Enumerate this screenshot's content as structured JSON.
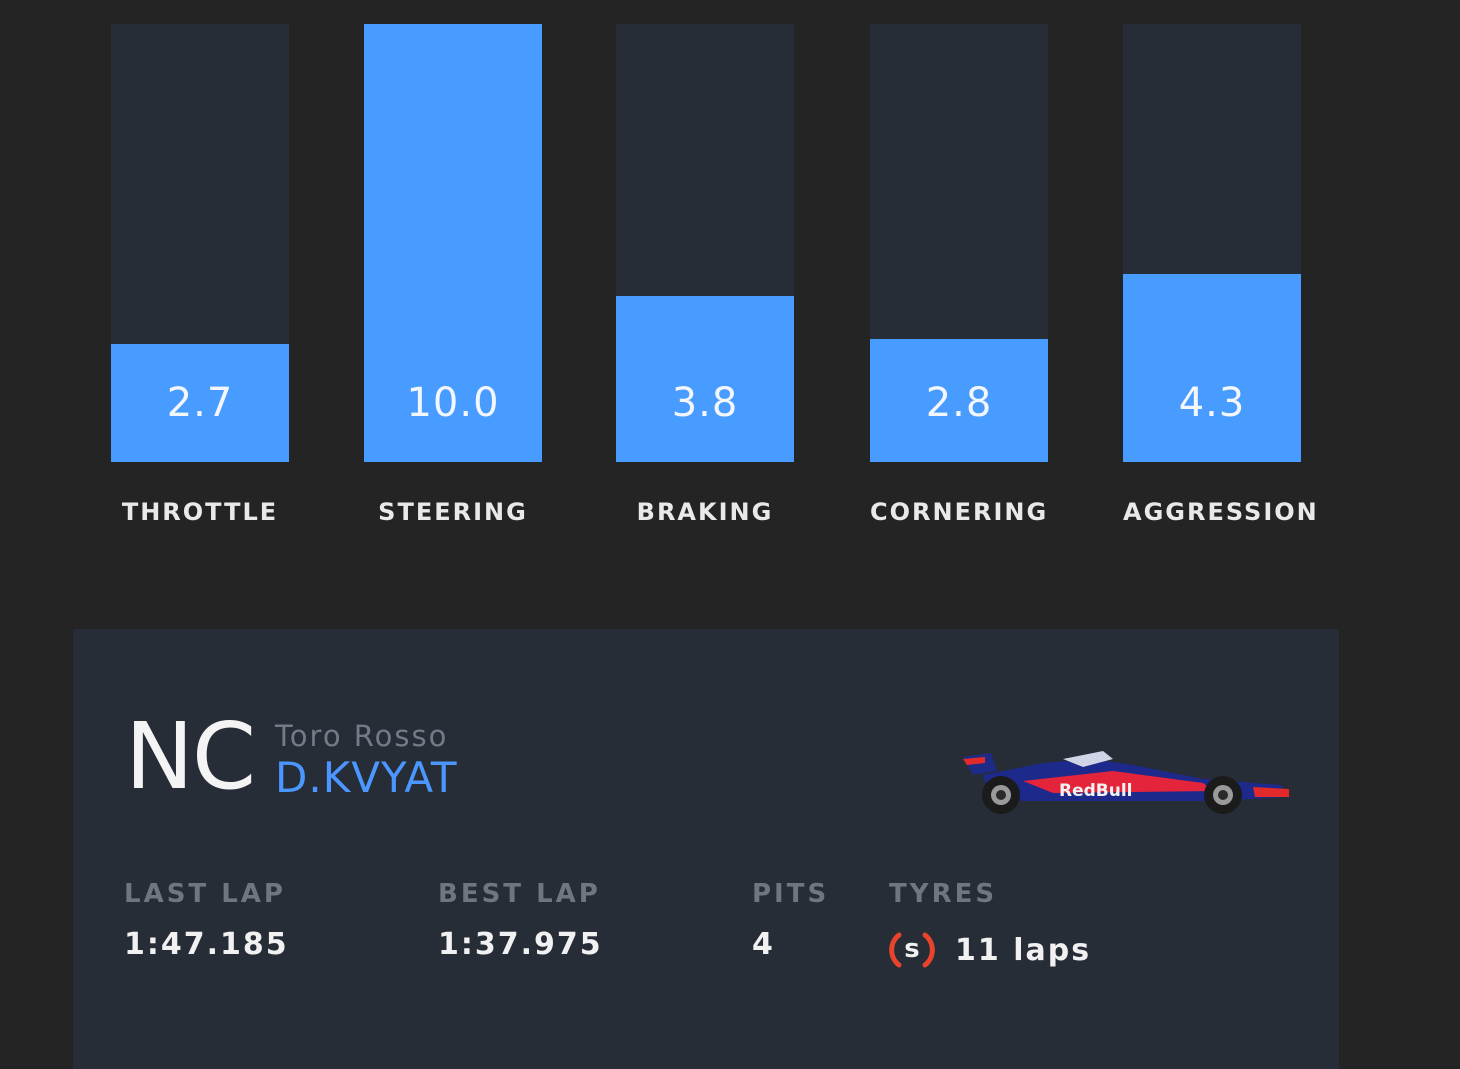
{
  "telemetry": {
    "bars": [
      {
        "label": "THROTTLE",
        "value": "2.7",
        "fill_fraction": 0.27
      },
      {
        "label": "STEERING",
        "value": "10.0",
        "fill_fraction": 1.0
      },
      {
        "label": "BRAKING",
        "value": "3.8",
        "fill_fraction": 0.38
      },
      {
        "label": "CORNERING",
        "value": "2.8",
        "fill_fraction": 0.28
      },
      {
        "label": "AGGRESSION",
        "value": "4.3",
        "fill_fraction": 0.43
      }
    ],
    "track_color": "#262d36",
    "fill_color": "#499cff"
  },
  "driver_card": {
    "position": "NC",
    "team": "Toro Rosso",
    "driver": "D.KVYAT",
    "car_icon": "racing-car-icon",
    "stats": {
      "last_lap_label": "LAST LAP",
      "last_lap": "1:47.185",
      "best_lap_label": "BEST LAP",
      "best_lap": "1:37.975",
      "pits_label": "PITS",
      "pits": "4",
      "tyres_label": "TYRES",
      "tyre_compound": "S",
      "tyre_laps": "11 laps",
      "tyre_color": "#e8432d"
    }
  }
}
